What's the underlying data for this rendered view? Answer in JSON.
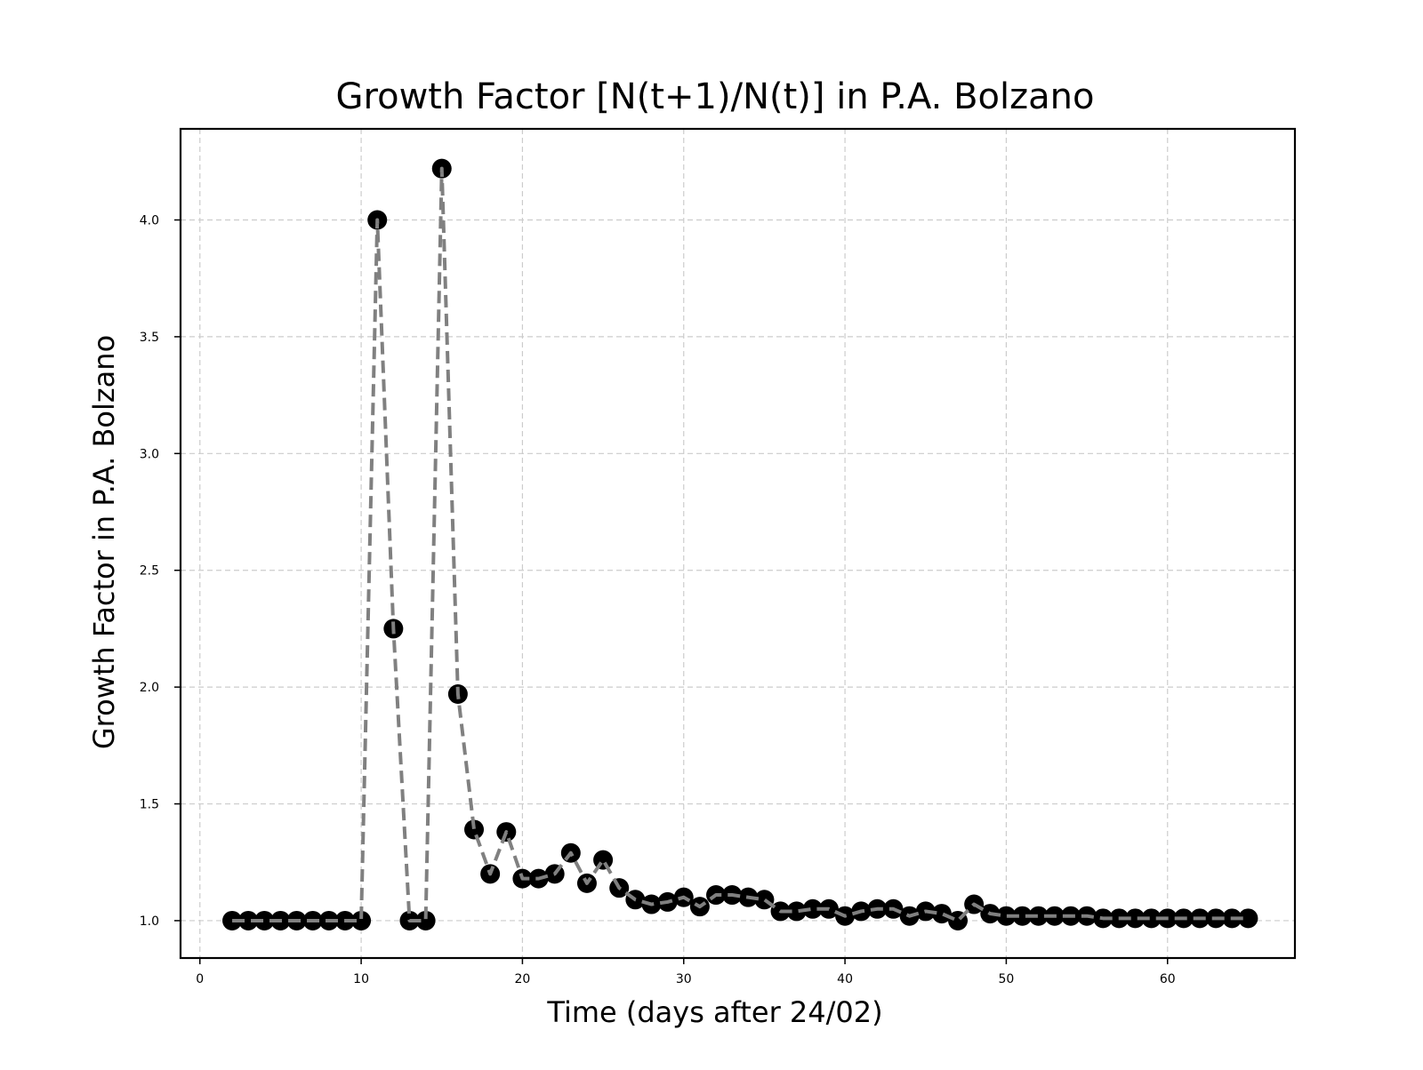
{
  "chart_data": {
    "type": "line",
    "title": "Growth Factor [N(t+1)/N(t)] in P.A. Bolzano",
    "xlabel": "Time (days after 24/02)",
    "ylabel": "Growth Factor in P.A. Bolzano",
    "xlim": [
      -1.2,
      67.9
    ],
    "ylim": [
      0.84,
      4.39
    ],
    "xticks": [
      0,
      10,
      20,
      30,
      40,
      50,
      60
    ],
    "yticks": [
      1.0,
      1.5,
      2.0,
      2.5,
      3.0,
      3.5,
      4.0
    ],
    "grid": true,
    "line_style": "dashed",
    "marker": "circle",
    "line_color": "#808080",
    "marker_color": "#000000",
    "series": [
      {
        "x": [
          2,
          3,
          4,
          5,
          6,
          7,
          8,
          9,
          10,
          11,
          12,
          13,
          14,
          15,
          16,
          17,
          18,
          19,
          20,
          21,
          22,
          23,
          24,
          25,
          26,
          27,
          28,
          29,
          30,
          31,
          32,
          33,
          34,
          35,
          36,
          37,
          38,
          39,
          40,
          41,
          42,
          43,
          44,
          45,
          46,
          47,
          48,
          49,
          50,
          51,
          52,
          53,
          54,
          55,
          56,
          57,
          58,
          59,
          60,
          61,
          62,
          63,
          64,
          65
        ],
        "values": [
          1.0,
          1.0,
          1.0,
          1.0,
          1.0,
          1.0,
          1.0,
          1.0,
          1.0,
          4.0,
          2.25,
          1.0,
          1.0,
          4.22,
          1.97,
          1.39,
          1.2,
          1.38,
          1.18,
          1.18,
          1.2,
          1.29,
          1.16,
          1.26,
          1.14,
          1.09,
          1.07,
          1.08,
          1.1,
          1.06,
          1.11,
          1.11,
          1.1,
          1.09,
          1.04,
          1.04,
          1.05,
          1.05,
          1.02,
          1.04,
          1.05,
          1.05,
          1.02,
          1.04,
          1.03,
          1.0,
          1.07,
          1.03,
          1.02,
          1.02,
          1.02,
          1.02,
          1.02,
          1.02,
          1.01,
          1.01,
          1.01,
          1.01,
          1.01,
          1.01,
          1.01,
          1.01,
          1.01,
          1.01
        ]
      }
    ]
  }
}
